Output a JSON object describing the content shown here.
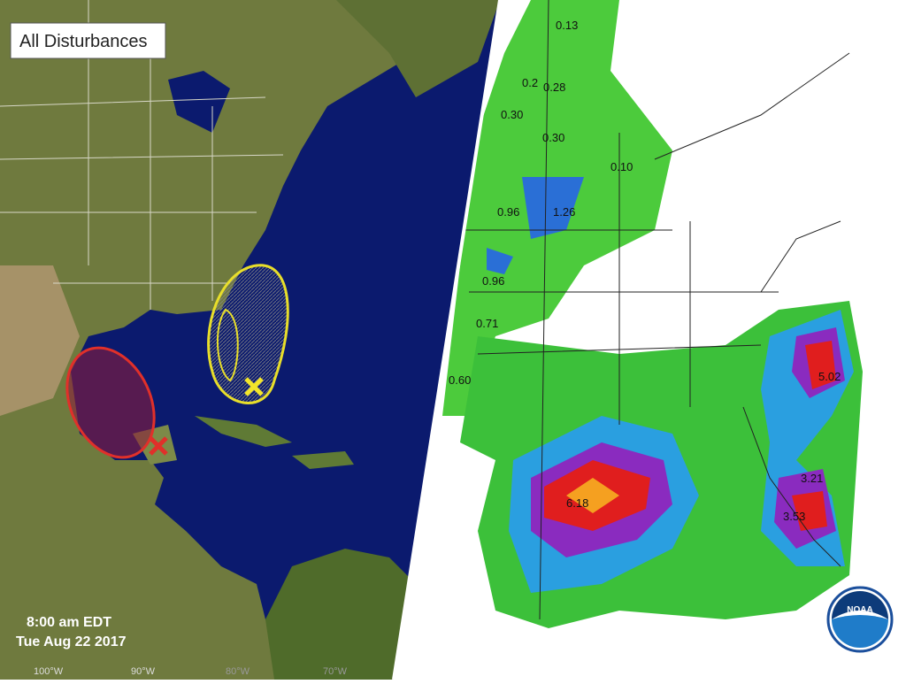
{
  "left_map": {
    "title": "All Disturbances",
    "time": "8:00 am EDT",
    "date": "Tue Aug 22 2017",
    "longitudes": [
      "100°W",
      "90°W",
      "80°W",
      "70°W"
    ]
  },
  "right_map": {
    "labels": [
      "0.13",
      "0.2",
      "0.28",
      "0.30",
      "0.30",
      "0.10",
      "0.96",
      "1.26",
      "0.96",
      "0.71",
      "0.60",
      "6.18",
      "5.02",
      "3.21",
      "3.53"
    ],
    "logo": "NOAA"
  }
}
